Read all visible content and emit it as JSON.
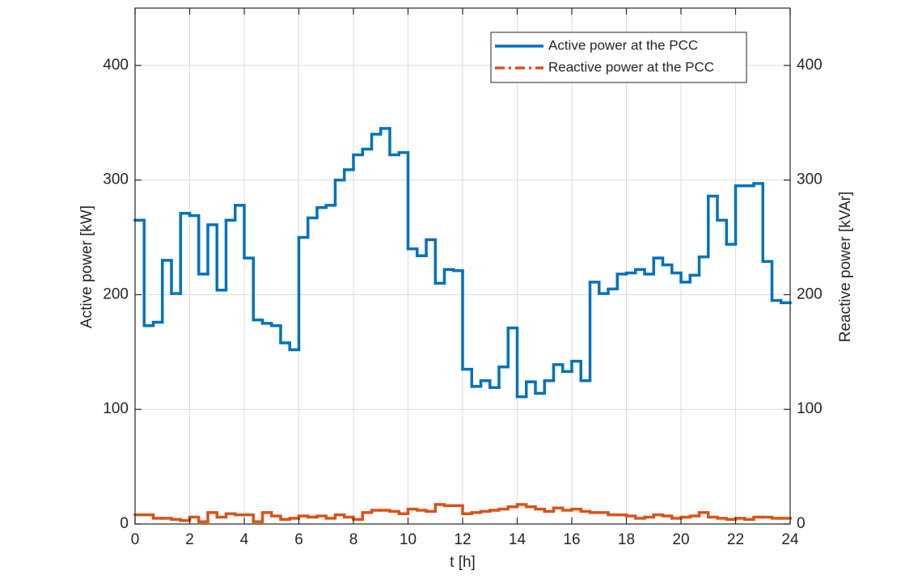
{
  "chart_data": {
    "type": "step",
    "x_label": "t [h]",
    "y_label": "Active power [kW]",
    "y2_label": "Reactive power [kVAr]",
    "x": [
      0,
      0.333,
      0.667,
      1,
      1.333,
      1.667,
      2,
      2.333,
      2.667,
      3,
      3.333,
      3.667,
      4,
      4.333,
      4.667,
      5,
      5.333,
      5.667,
      6,
      6.333,
      6.667,
      7,
      7.333,
      7.667,
      8,
      8.333,
      8.667,
      9,
      9.333,
      9.667,
      10,
      10.333,
      10.667,
      11,
      11.333,
      11.667,
      12,
      12.333,
      12.667,
      13,
      13.333,
      13.667,
      14,
      14.333,
      14.667,
      15,
      15.333,
      15.667,
      16,
      16.333,
      16.667,
      17,
      17.333,
      17.667,
      18,
      18.333,
      18.667,
      19,
      19.333,
      19.667,
      20,
      20.333,
      20.667,
      21,
      21.333,
      21.667,
      22,
      22.333,
      22.667,
      23,
      23.333,
      23.667
    ],
    "series": [
      {
        "name": "Active power at the PCC",
        "color": "#0072BD",
        "dash": "solid",
        "values": [
          265,
          173,
          176,
          230,
          201,
          271,
          269,
          218,
          261,
          204,
          265,
          278,
          232,
          178,
          175,
          173,
          158,
          152,
          250,
          267,
          276,
          278,
          300,
          309,
          322,
          327,
          340,
          345,
          322,
          324,
          240,
          234,
          248,
          210,
          222,
          221,
          135,
          120,
          125,
          119,
          137,
          171,
          111,
          124,
          114,
          125,
          139,
          133,
          142,
          125,
          211,
          201,
          205,
          218,
          219,
          222,
          218,
          232,
          226,
          219,
          211,
          217,
          233,
          286,
          265,
          244,
          295,
          295,
          297,
          229,
          195,
          193
        ]
      },
      {
        "name": "Reactive power at the PCC",
        "color": "#D95319",
        "dash": "dashdot",
        "axis": "y2",
        "values": [
          8,
          8,
          5,
          5,
          4,
          3,
          6,
          2,
          10,
          6,
          9,
          8,
          8,
          2,
          10,
          7,
          4,
          5,
          7,
          6,
          7,
          5,
          8,
          6,
          4,
          10,
          12,
          12,
          11,
          9,
          13,
          12,
          11,
          17,
          16,
          16,
          9,
          10,
          11,
          12,
          13,
          15,
          17,
          15,
          13,
          11,
          14,
          12,
          13,
          11,
          10,
          10,
          8,
          8,
          7,
          5,
          6,
          8,
          7,
          5,
          6,
          7,
          10,
          6,
          5,
          4,
          5,
          4,
          6,
          6,
          5,
          5
        ]
      }
    ],
    "xlim": [
      0,
      24
    ],
    "xticks": [
      0,
      2,
      4,
      6,
      8,
      10,
      12,
      14,
      16,
      18,
      20,
      22,
      24
    ],
    "ylim": [
      0,
      450
    ],
    "yticks": [
      0,
      100,
      200,
      300,
      400
    ],
    "y2lim": [
      0,
      450
    ],
    "y2ticks": [
      0,
      100,
      200,
      300,
      400
    ],
    "grid": true,
    "legend": "northeast"
  }
}
